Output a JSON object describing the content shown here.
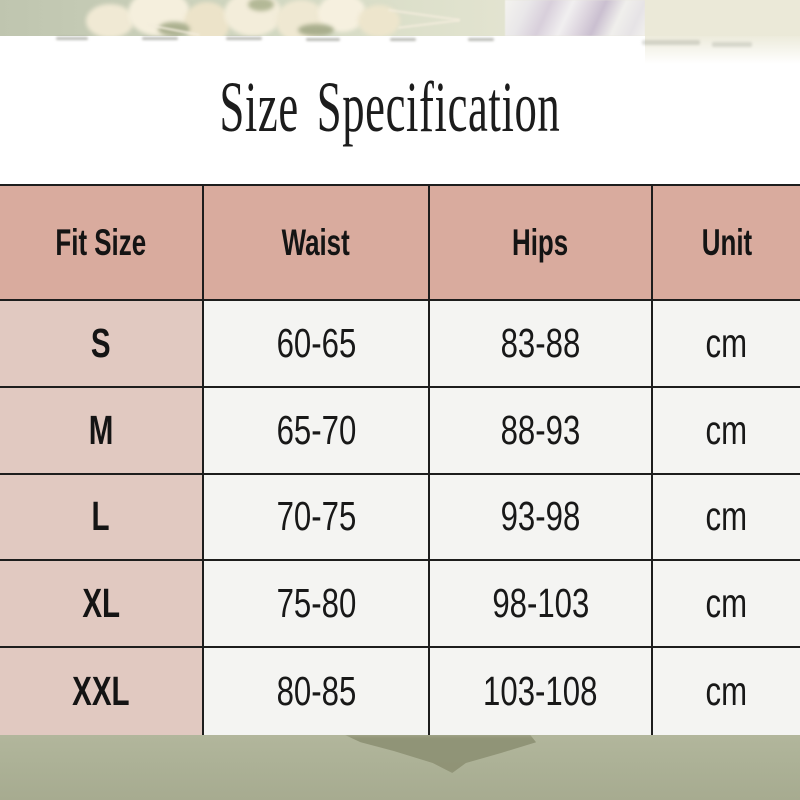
{
  "page_title": "Size Specification",
  "size_table": {
    "headers": {
      "fit_size": "Fit Size",
      "waist": "Waist",
      "hips": "Hips",
      "unit": "Unit"
    },
    "rows": [
      {
        "size": "S",
        "waist": "60-65",
        "hips": "83-88",
        "unit": "cm"
      },
      {
        "size": "M",
        "waist": "65-70",
        "hips": "88-93",
        "unit": "cm"
      },
      {
        "size": "L",
        "waist": "70-75",
        "hips": "93-98",
        "unit": "cm"
      },
      {
        "size": "XL",
        "waist": "75-80",
        "hips": "98-103",
        "unit": "cm"
      },
      {
        "size": "XXL",
        "waist": "80-85",
        "hips": "103-108",
        "unit": "cm"
      }
    ]
  },
  "colors": {
    "header_pink": "#d9ab9e",
    "row_pink": "#e1c9c1",
    "cell_white": "#f4f4f2",
    "grid_line": "#1d1d1d",
    "background_sage": "#aaaf94",
    "shadow_olive": "#8b8f71",
    "cream_band": "#ebe9d8",
    "text": "#141414"
  },
  "chart_data": {
    "type": "table",
    "title": "Size Specification",
    "columns": [
      "Fit Size",
      "Waist",
      "Hips",
      "Unit"
    ],
    "rows": [
      [
        "S",
        "60-65",
        "83-88",
        "cm"
      ],
      [
        "M",
        "65-70",
        "88-93",
        "cm"
      ],
      [
        "L",
        "70-75",
        "93-98",
        "cm"
      ],
      [
        "XL",
        "75-80",
        "98-103",
        "cm"
      ],
      [
        "XXL",
        "80-85",
        "103-108",
        "cm"
      ]
    ],
    "units": "cm"
  }
}
